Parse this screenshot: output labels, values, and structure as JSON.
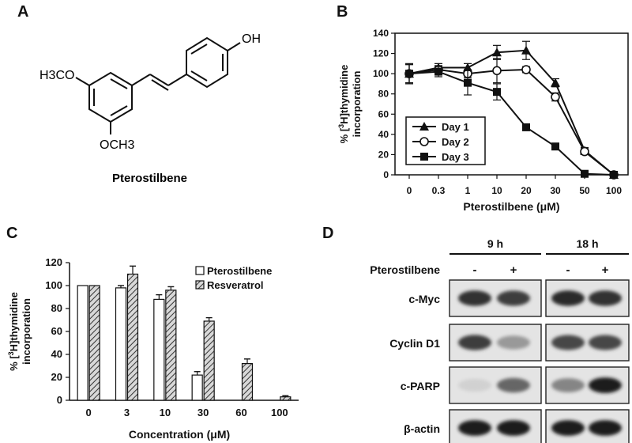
{
  "panels": {
    "a": {
      "letter": "A",
      "compound_name": "Pterostilbene",
      "oh_label": "OH",
      "och3_left": "H3CO",
      "och3_bottom": "OCH3"
    },
    "b": {
      "letter": "B"
    },
    "c": {
      "letter": "C"
    },
    "d": {
      "letter": "D"
    }
  },
  "chart_data": [
    {
      "id": "B",
      "type": "line",
      "categories": [
        "0",
        "0.3",
        "1",
        "10",
        "20",
        "30",
        "50",
        "100"
      ],
      "ylabel_line1": "% [3H]thymidine",
      "ylabel_line2": "incorporation",
      "xlabel": "Pterostilbene (μM)",
      "ylim": [
        0,
        140
      ],
      "yticks": [
        0,
        20,
        40,
        60,
        80,
        100,
        120,
        140
      ],
      "legend_position": "bottom-left",
      "series": [
        {
          "name": "Day 1",
          "marker": "triangle",
          "values": [
            100,
            106,
            106,
            121,
            123,
            91,
            24,
            0
          ],
          "errors": [
            10,
            4,
            4,
            7,
            9,
            4,
            3,
            0
          ]
        },
        {
          "name": "Day 2",
          "marker": "circle-open",
          "values": [
            100,
            104,
            100,
            103,
            104,
            77,
            23,
            0
          ],
          "errors": [
            9,
            4,
            4,
            12,
            3,
            4,
            3,
            0
          ]
        },
        {
          "name": "Day 3",
          "marker": "square",
          "values": [
            100,
            102,
            91,
            82,
            47,
            28,
            1,
            0
          ],
          "errors": [
            9,
            5,
            12,
            8,
            2,
            2,
            1,
            0
          ]
        }
      ]
    },
    {
      "id": "C",
      "type": "bar",
      "categories": [
        "0",
        "3",
        "10",
        "30",
        "60",
        "100"
      ],
      "ylabel_line1": "% [3H]thymidine",
      "ylabel_line2": "incorporation",
      "xlabel": "Concentration (μM)",
      "ylim": [
        0,
        120
      ],
      "yticks": [
        0,
        20,
        40,
        60,
        80,
        100,
        120
      ],
      "legend_position": "top-right",
      "series": [
        {
          "name": "Pterostilbene",
          "pattern": "open",
          "values": [
            100,
            98,
            88,
            22,
            0,
            0
          ],
          "errors": [
            0,
            2,
            4,
            3,
            0,
            0
          ]
        },
        {
          "name": "Resveratrol",
          "pattern": "hatched",
          "values": [
            100,
            110,
            96,
            69,
            32,
            3
          ],
          "errors": [
            0,
            7,
            3,
            3,
            4,
            1
          ]
        }
      ]
    }
  ],
  "blot": {
    "time_points": [
      "9 h",
      "18 h"
    ],
    "treatment_label": "Pterostilbene",
    "lane_signs": [
      "-",
      "+",
      "-",
      "+"
    ],
    "rows": [
      {
        "label": "c-Myc",
        "intensities": [
          0.85,
          0.8,
          0.9,
          0.85
        ]
      },
      {
        "label": "Cyclin D1",
        "intensities": [
          0.8,
          0.35,
          0.75,
          0.75
        ]
      },
      {
        "label": "c-PARP",
        "intensities": [
          0.08,
          0.6,
          0.45,
          0.95
        ]
      },
      {
        "label": "β-actin",
        "intensities": [
          0.95,
          0.95,
          0.95,
          0.95
        ]
      }
    ]
  }
}
